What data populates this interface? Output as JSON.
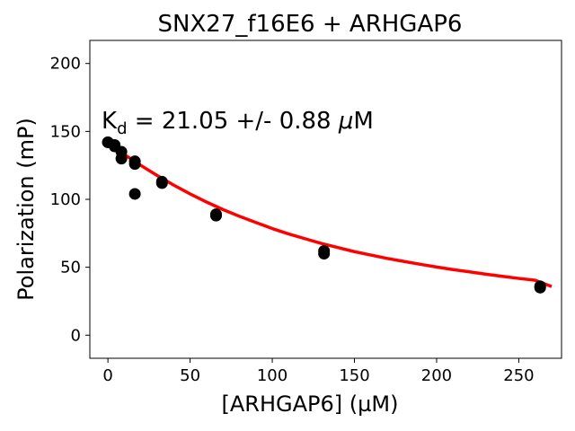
{
  "chart_data": {
    "type": "scatter",
    "title": "SNX27_f16E6 + ARHGAP6",
    "xlabel": "[ARHGAP6] (µM)",
    "ylabel": "Polarization (mP)",
    "xlim": [
      -11,
      276
    ],
    "ylim": [
      -17,
      217
    ],
    "xticks": [
      0,
      50,
      100,
      150,
      200,
      250
    ],
    "yticks": [
      0,
      50,
      100,
      150,
      200
    ],
    "grid": false,
    "annotation": {
      "prefix": "K",
      "subscript": "d",
      "text": " = 21.05 +/- 0.88 ",
      "unit_symbol": "μ",
      "unit_suffix": "M"
    },
    "series": [
      {
        "kind": "points",
        "color": "#000000",
        "points": [
          [
            0,
            142
          ],
          [
            0,
            142
          ],
          [
            4.1,
            140
          ],
          [
            4.1,
            139
          ],
          [
            8.2,
            135
          ],
          [
            8.2,
            130
          ],
          [
            16.4,
            128
          ],
          [
            16.4,
            126
          ],
          [
            16.4,
            104
          ],
          [
            32.9,
            113
          ],
          [
            32.9,
            112
          ],
          [
            65.8,
            89
          ],
          [
            65.8,
            88
          ],
          [
            131.5,
            62
          ],
          [
            131.5,
            60
          ],
          [
            263,
            36
          ],
          [
            263,
            35
          ]
        ]
      },
      {
        "kind": "fit",
        "color": "#ff0000",
        "x": [
          0,
          10,
          20,
          30,
          40,
          50,
          60,
          70,
          80,
          90,
          100,
          110,
          120,
          130,
          140,
          150,
          160,
          170,
          180,
          190,
          200,
          210,
          220,
          230,
          240,
          250,
          260,
          270
        ],
        "y": [
          143,
          133,
          125,
          117.5,
          110.5,
          104,
          98,
          92.5,
          87.5,
          83,
          78.5,
          74.5,
          71,
          67.5,
          64.5,
          61.5,
          59,
          56.5,
          54.3,
          52.2,
          50.2,
          48.3,
          46.6,
          44.9,
          43.3,
          41.8,
          40.4,
          35.8
        ]
      }
    ]
  }
}
